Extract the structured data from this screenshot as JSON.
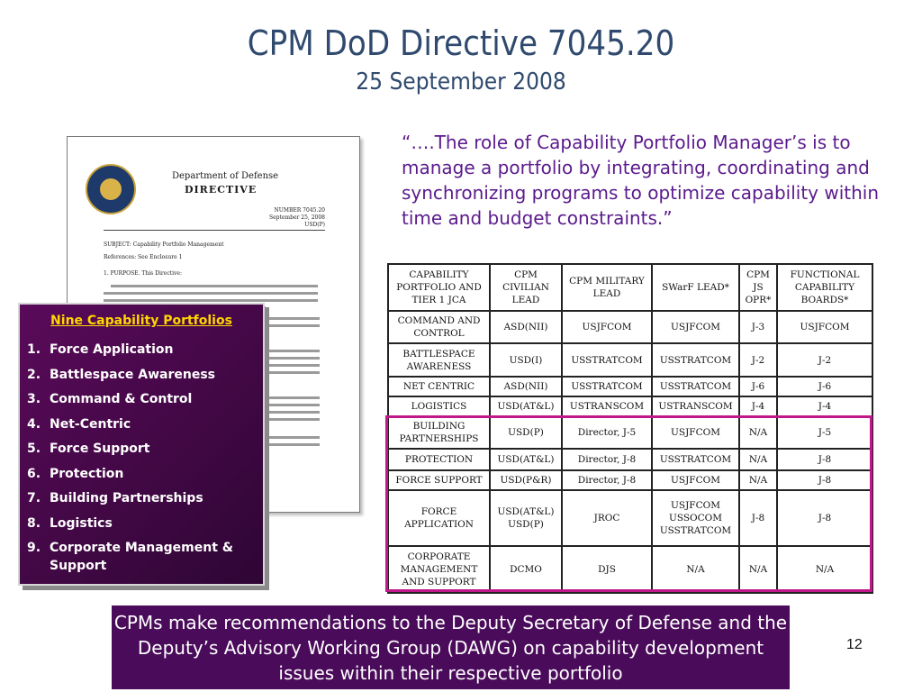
{
  "slide": {
    "title": "CPM DoD Directive 7045.20",
    "subtitle": "25 September 2008",
    "quote": "“….The role of Capability Portfolio Manager’s is to manage a portfolio by integrating, coordinating and synchronizing programs to optimize capability within time and budget constraints.”",
    "callout": "CPMs make recommendations to the Deputy Secretary of Defense and the Deputy’s Advisory Working Group (DAWG) on capability development issues within their respective portfolio",
    "page_number": "12"
  },
  "document": {
    "header1": "Department of Defense",
    "header2": "DIRECTIVE",
    "number_line": "NUMBER 7045.20",
    "date_line": "September 25, 2008",
    "office": "USD(P)",
    "subject": "SUBJECT:   Capability Portfolio Management",
    "references": "References:   See Enclosure 1",
    "purpose": "1.  PURPOSE.  This Directive:"
  },
  "portfolios": {
    "title": "Nine Capability Portfolios",
    "items": [
      {
        "n": "1.",
        "label": "Force Application"
      },
      {
        "n": "2.",
        "label": "Battlespace Awareness"
      },
      {
        "n": "3.",
        "label": "Command & Control"
      },
      {
        "n": "4.",
        "label": "Net-Centric"
      },
      {
        "n": "5.",
        "label": "Force Support"
      },
      {
        "n": "6.",
        "label": "Protection"
      },
      {
        "n": "7.",
        "label": "Building Partnerships"
      },
      {
        "n": "8.",
        "label": "Logistics"
      },
      {
        "n": "9.",
        "label": "Corporate Management & Support"
      }
    ]
  },
  "table": {
    "headers": [
      "CAPABILITY PORTFOLIO AND TIER 1 JCA",
      "CPM CIVILIAN LEAD",
      "CPM MILITARY LEAD",
      "SWarF LEAD*",
      "CPM JS OPR*",
      "FUNCTIONAL CAPABILITY BOARDS*"
    ],
    "rows": [
      [
        "COMMAND AND CONTROL",
        "ASD(NII)",
        "USJFCOM",
        "USJFCOM",
        "J-3",
        "USJFCOM"
      ],
      [
        "BATTLESPACE AWARENESS",
        "USD(I)",
        "USSTRATCOM",
        "USSTRATCOM",
        "J-2",
        "J-2"
      ],
      [
        "NET CENTRIC",
        "ASD(NII)",
        "USSTRATCOM",
        "USSTRATCOM",
        "J-6",
        "J-6"
      ],
      [
        "LOGISTICS",
        "USD(AT&L)",
        "USTRANSCOM",
        "USTRANSCOM",
        "J-4",
        "J-4"
      ],
      [
        "BUILDING PARTNERSHIPS",
        "USD(P)",
        "Director, J-5",
        "USJFCOM",
        "N/A",
        "J-5"
      ],
      [
        "PROTECTION",
        "USD(AT&L)",
        "Director, J-8",
        "USSTRATCOM",
        "N/A",
        "J-8"
      ],
      [
        "FORCE SUPPORT",
        "USD(P&R)",
        "Director, J-8",
        "USJFCOM",
        "N/A",
        "J-8"
      ],
      [
        "FORCE APPLICATION",
        "USD(AT&L) USD(P)",
        "JROC",
        "USJFCOM USSOCOM USSTRATCOM",
        "J-8",
        "J-8"
      ],
      [
        "CORPORATE MANAGEMENT AND SUPPORT",
        "DCMO",
        "DJS",
        "N/A",
        "N/A",
        "N/A"
      ]
    ]
  },
  "colors": {
    "title": "#2f4a6e",
    "quote": "#5b1a8c",
    "panel_bg": "#4a0b5a",
    "panel_title": "#ffd600",
    "highlight": "#c0188a"
  }
}
